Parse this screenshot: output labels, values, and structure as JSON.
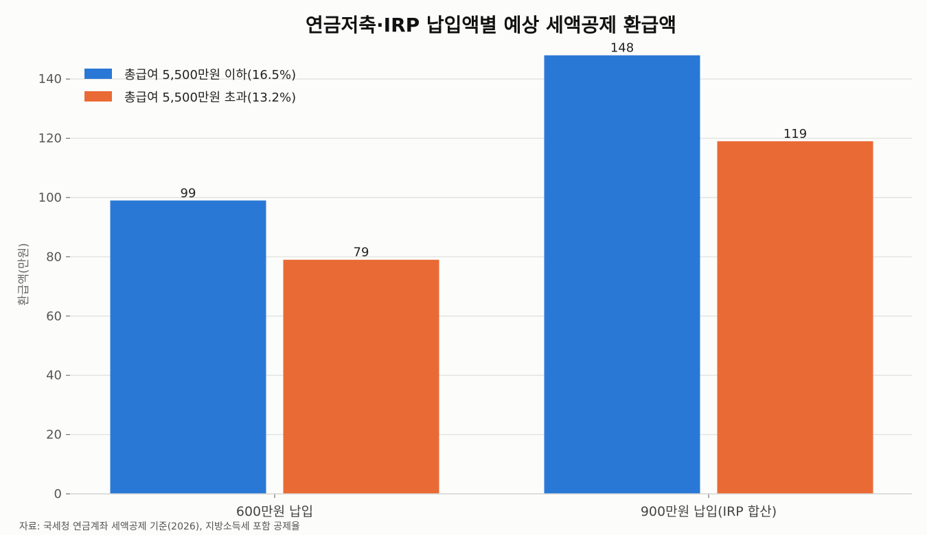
{
  "chart_data": {
    "type": "bar",
    "title": "연금저축·IRP 납입액별 예상 세액공제 환급액",
    "xlabel": "",
    "ylabel": "환급액(만원)",
    "categories": [
      "600만원 납입",
      "900만원 납입(IRP 합산)"
    ],
    "series": [
      {
        "name": "총급여 5,500만원 이하(16.5%)",
        "values": [
          99,
          148
        ],
        "color": "#2a78d6"
      },
      {
        "name": "총급여 5,500만원 초과(13.2%)",
        "values": [
          79,
          119
        ],
        "color": "#ea6a35"
      }
    ],
    "ylim": [
      0,
      150
    ],
    "yticks": [
      0,
      20,
      40,
      60,
      80,
      100,
      120,
      140
    ],
    "grid": "horizontal",
    "legend_position": "top-left",
    "source": "자료: 국세청 연금계좌 세액공제 기준(2026), 지방소득세 포함 공제율"
  }
}
